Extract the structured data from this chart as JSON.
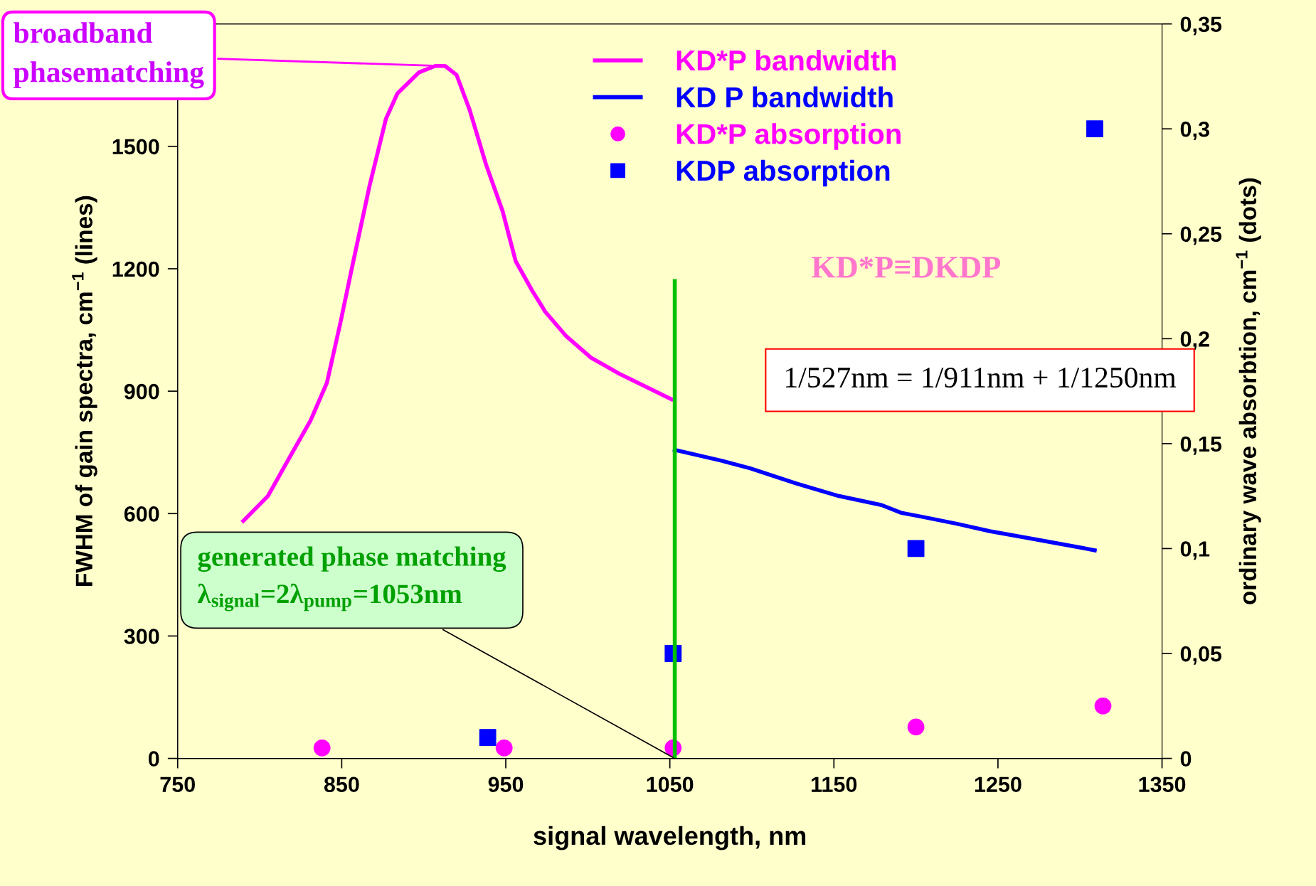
{
  "chart_data": {
    "type": "line",
    "xlabel": "signal wavelength, nm",
    "ylabel": "FWHM of gain spectra, cm$^{−1}$ (lines)",
    "y2label": "ordinary wave absorbtion, cm$^{−1}$ (dots)",
    "xlim": [
      750,
      1350
    ],
    "xticks": [
      750,
      850,
      950,
      1050,
      1150,
      1250,
      1350
    ],
    "ylim": [
      0,
      1800
    ],
    "yticks": [
      0,
      300,
      600,
      900,
      1200,
      1500
    ],
    "y2lim": [
      0,
      0.35
    ],
    "y2ticks": [
      0,
      {
        "value": 0.05,
        "label": "0,05"
      },
      {
        "value": 0.1,
        "label": "0,1"
      },
      {
        "value": 0.15,
        "label": "0,15"
      },
      {
        "value": 0.2,
        "label": "0,2"
      },
      {
        "value": 0.25,
        "label": "0,25"
      },
      {
        "value": 0.3,
        "label": "0,3"
      },
      {
        "value": 0.35,
        "label": "0,35"
      }
    ],
    "grid": false,
    "legend": "top",
    "series": [
      {
        "name": "KD*P bandwidth",
        "type": "line",
        "color": "#ff00ff",
        "x": [
          790,
          805,
          818,
          831,
          841,
          849,
          856,
          867,
          877,
          884,
          897,
          907,
          913,
          920,
          928,
          938,
          948,
          956,
          966,
          974,
          987,
          1002,
          1020,
          1051
        ],
        "values": [
          582,
          643,
          736,
          828,
          921,
          1064,
          1198,
          1404,
          1568,
          1630,
          1681,
          1697,
          1697,
          1675,
          1589,
          1455,
          1342,
          1219,
          1147,
          1095,
          1034,
          982,
          941,
          880
        ]
      },
      {
        "name": "KD P bandwidth",
        "type": "line",
        "color": "#0000ff",
        "x": [
          1053,
          1081,
          1099,
          1127,
          1153,
          1179,
          1191,
          1204,
          1225,
          1245,
          1271,
          1296,
          1309
        ],
        "values": [
          756,
          730,
          711,
          674,
          643,
          621,
          602,
          592,
          575,
          557,
          538,
          520,
          510
        ]
      },
      {
        "name": "KD*P absorption",
        "type": "scatter",
        "marker": "circle",
        "axis": "y2",
        "color": "#ff00ff",
        "x": [
          838,
          949,
          1052,
          1200,
          1314
        ],
        "values": [
          0.005,
          0.005,
          0.005,
          0.015,
          0.025
        ]
      },
      {
        "name": "KDP absorption",
        "type": "scatter",
        "marker": "square",
        "axis": "y2",
        "color": "#0000ff",
        "x": [
          939,
          1052,
          1200,
          1309
        ],
        "values": [
          0.01,
          0.05,
          0.1,
          0.3
        ]
      },
      {
        "type": "line",
        "color": "#00c000",
        "x": [
          1053,
          1053
        ],
        "values": [
          0,
          1170
        ]
      }
    ],
    "annotations": [
      {
        "text": "broadband\nphasematching",
        "x": 910,
        "y": 1697
      },
      {
        "text": "generated phase matching\nλ$_{signal}$=2λ$_{pump}$=1053nm",
        "x": 1053,
        "y": 0
      },
      "KD*P≡DKDP",
      "1/527nm = 1/911nm + 1/1250nm"
    ]
  }
}
